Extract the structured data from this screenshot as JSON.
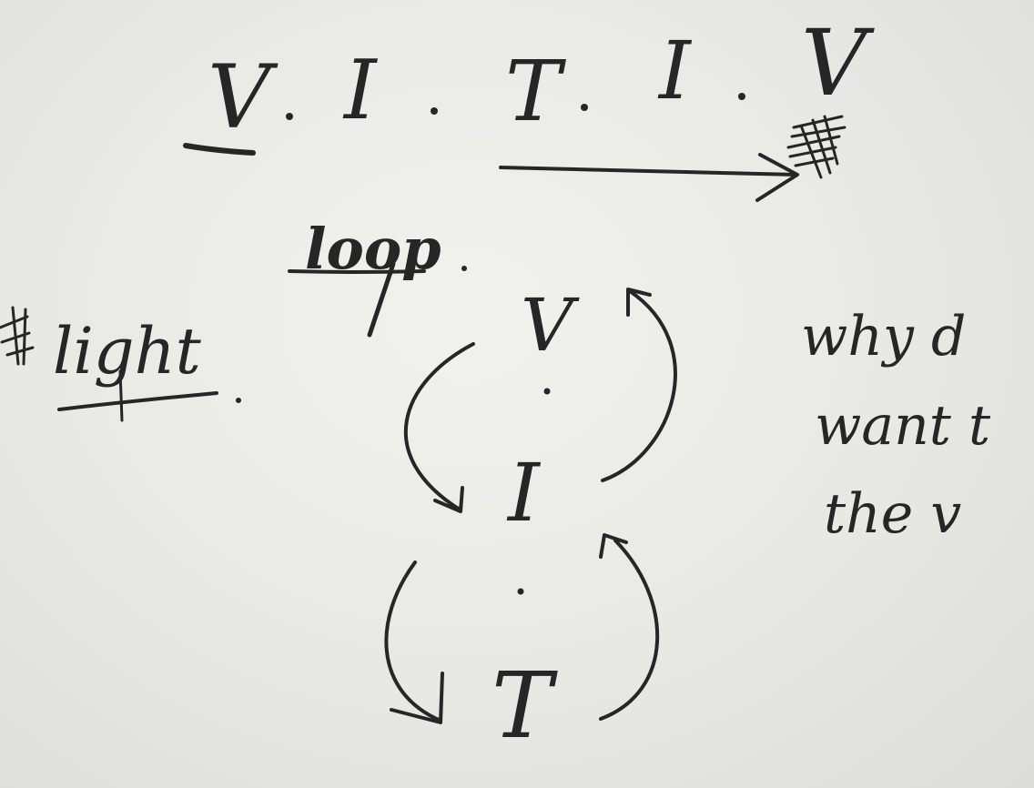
{
  "note": {
    "top_row": [
      "V",
      "I",
      "T",
      "I",
      "V"
    ],
    "loop_word": "loop",
    "loop": [
      "V",
      "I",
      "T"
    ],
    "left_word": "light",
    "right_text": [
      "why d",
      "want t",
      "the v"
    ]
  },
  "colors": {
    "paper": "#ececea",
    "ink": "#262626"
  }
}
